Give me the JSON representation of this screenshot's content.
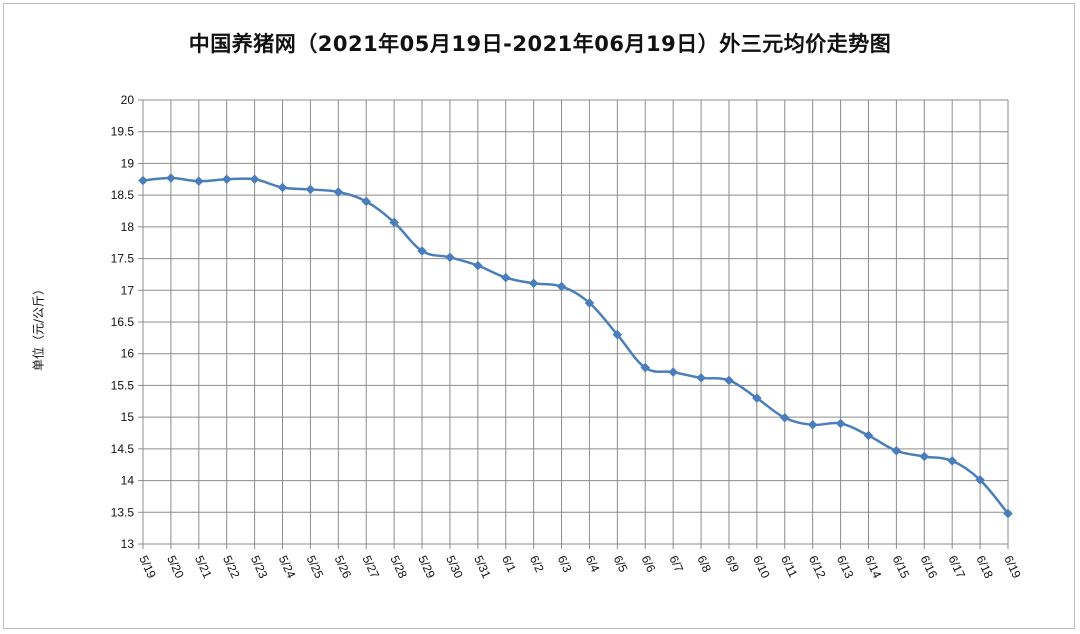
{
  "chart_data": {
    "type": "line",
    "title": "中国养猪网（2021年05月19日-2021年06月19日）外三元均价走势图",
    "xlabel": "",
    "ylabel": "单位（元/公斤）",
    "ylim": [
      13,
      20
    ],
    "ytick_step": 0.5,
    "grid": true,
    "legend": "none",
    "categories": [
      "5/19",
      "5/20",
      "5/21",
      "5/22",
      "5/23",
      "5/24",
      "5/25",
      "5/26",
      "5/27",
      "5/28",
      "5/29",
      "5/30",
      "5/31",
      "6/1",
      "6/2",
      "6/3",
      "6/4",
      "6/5",
      "6/6",
      "6/7",
      "6/8",
      "6/9",
      "6/10",
      "6/11",
      "6/12",
      "6/13",
      "6/14",
      "6/15",
      "6/16",
      "6/17",
      "6/18",
      "6/19"
    ],
    "series": [
      {
        "values": [
          18.73,
          18.77,
          18.72,
          18.75,
          18.75,
          18.62,
          18.59,
          18.55,
          18.4,
          18.07,
          17.62,
          17.52,
          17.39,
          17.2,
          17.11,
          17.06,
          16.8,
          16.3,
          15.78,
          15.71,
          15.62,
          15.58,
          15.3,
          14.99,
          14.88,
          14.9,
          14.71,
          14.47,
          14.38,
          14.31,
          14.01,
          13.48
        ]
      }
    ],
    "colors": {
      "line": "#4a7ebb",
      "grid": "#8c8c8c",
      "frame": "#bfbfbf"
    }
  }
}
